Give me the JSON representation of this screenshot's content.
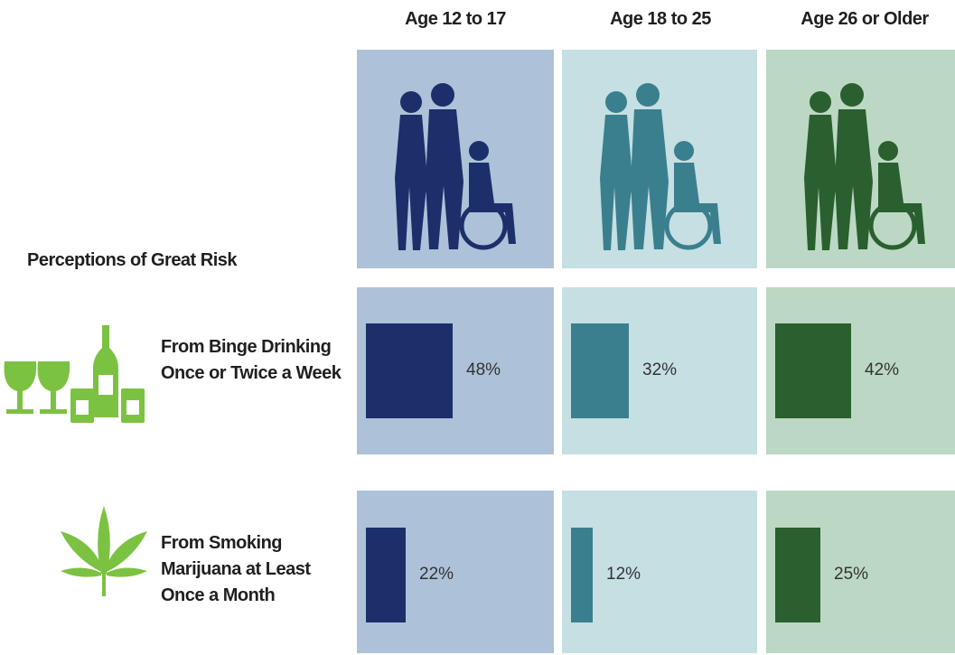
{
  "chart_data": {
    "type": "bar",
    "title": "Perceptions of Great Risk",
    "categories": [
      "Age 12 to 17",
      "Age 18 to 25",
      "Age 26 or Older"
    ],
    "colors": [
      "#1c2f6b",
      "#3a7f8e",
      "#2a5f2f"
    ],
    "series": [
      {
        "name": "From Binge Drinking Once or Twice a Week",
        "values": [
          48,
          32,
          42
        ],
        "value_labels": [
          "48%",
          "32%",
          "42%"
        ]
      },
      {
        "name": "From Smoking Marijuana at Least Once a Month",
        "values": [
          22,
          12,
          25
        ],
        "value_labels": [
          "22%",
          "12%",
          "25%"
        ]
      }
    ]
  }
}
